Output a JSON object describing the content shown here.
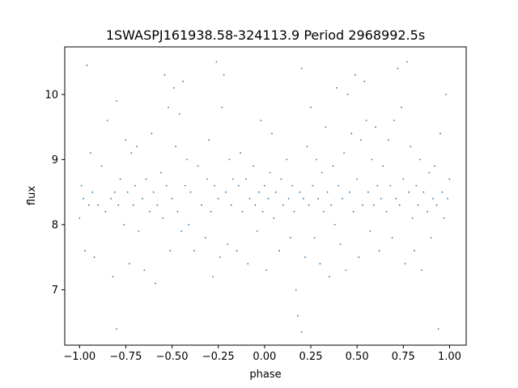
{
  "chart_data": {
    "type": "scatter",
    "title": "1SWASPJ161938.58-324113.9 Period 2968992.5s",
    "xlabel": "phase",
    "ylabel": "flux",
    "xlim": [
      -1.08,
      1.09
    ],
    "ylim": [
      6.15,
      10.73
    ],
    "xticks": [
      {
        "value": -1.0,
        "label": "−1.00"
      },
      {
        "value": -0.75,
        "label": "−0.75"
      },
      {
        "value": -0.5,
        "label": "−0.50"
      },
      {
        "value": -0.25,
        "label": "−0.25"
      },
      {
        "value": 0.0,
        "label": "0.00"
      },
      {
        "value": 0.25,
        "label": "0.25"
      },
      {
        "value": 0.5,
        "label": "0.50"
      },
      {
        "value": 0.75,
        "label": "0.75"
      },
      {
        "value": 1.0,
        "label": "1.00"
      }
    ],
    "yticks": [
      {
        "value": 7,
        "label": "7"
      },
      {
        "value": 8,
        "label": "8"
      },
      {
        "value": 9,
        "label": "9"
      },
      {
        "value": 10,
        "label": "10"
      }
    ],
    "grid": false,
    "legend": "none",
    "marker_color": "#1f77b4",
    "series": [
      {
        "points": [
          [
            -1.0,
            8.1
          ],
          [
            -0.99,
            8.6
          ],
          [
            -0.98,
            8.4
          ],
          [
            -0.97,
            7.6
          ],
          [
            -0.96,
            10.45
          ],
          [
            -0.95,
            8.3
          ],
          [
            -0.94,
            9.1
          ],
          [
            -0.93,
            8.5
          ],
          [
            -0.92,
            7.5
          ],
          [
            -0.9,
            8.3
          ],
          [
            -0.88,
            8.9
          ],
          [
            -0.86,
            8.2
          ],
          [
            -0.85,
            9.6
          ],
          [
            -0.83,
            8.4
          ],
          [
            -0.82,
            7.2
          ],
          [
            -0.81,
            8.5
          ],
          [
            -0.8,
            6.4
          ],
          [
            -0.8,
            9.9
          ],
          [
            -0.79,
            8.3
          ],
          [
            -0.78,
            8.7
          ],
          [
            -0.76,
            8.0
          ],
          [
            -0.75,
            9.3
          ],
          [
            -0.74,
            8.5
          ],
          [
            -0.73,
            7.4
          ],
          [
            -0.72,
            9.1
          ],
          [
            -0.71,
            8.3
          ],
          [
            -0.7,
            8.6
          ],
          [
            -0.69,
            9.2
          ],
          [
            -0.68,
            7.9
          ],
          [
            -0.66,
            8.4
          ],
          [
            -0.65,
            7.3
          ],
          [
            -0.64,
            8.7
          ],
          [
            -0.62,
            8.2
          ],
          [
            -0.61,
            9.4
          ],
          [
            -0.6,
            8.5
          ],
          [
            -0.59,
            7.1
          ],
          [
            -0.58,
            8.3
          ],
          [
            -0.56,
            8.8
          ],
          [
            -0.55,
            8.1
          ],
          [
            -0.54,
            10.3
          ],
          [
            -0.53,
            8.6
          ],
          [
            -0.52,
            9.8
          ],
          [
            -0.51,
            7.6
          ],
          [
            -0.5,
            8.4
          ],
          [
            -0.49,
            10.1
          ],
          [
            -0.48,
            9.2
          ],
          [
            -0.47,
            8.2
          ],
          [
            -0.46,
            9.7
          ],
          [
            -0.45,
            7.9
          ],
          [
            -0.44,
            10.2
          ],
          [
            -0.43,
            8.6
          ],
          [
            -0.42,
            9.0
          ],
          [
            -0.41,
            8.0
          ],
          [
            -0.4,
            8.5
          ],
          [
            -0.38,
            7.6
          ],
          [
            -0.36,
            8.9
          ],
          [
            -0.34,
            8.3
          ],
          [
            -0.32,
            7.8
          ],
          [
            -0.31,
            8.7
          ],
          [
            -0.3,
            9.3
          ],
          [
            -0.29,
            8.2
          ],
          [
            -0.28,
            7.2
          ],
          [
            -0.27,
            8.6
          ],
          [
            -0.26,
            10.5
          ],
          [
            -0.25,
            8.4
          ],
          [
            -0.24,
            7.5
          ],
          [
            -0.23,
            9.8
          ],
          [
            -0.22,
            10.3
          ],
          [
            -0.21,
            8.5
          ],
          [
            -0.2,
            7.7
          ],
          [
            -0.19,
            9.0
          ],
          [
            -0.18,
            8.3
          ],
          [
            -0.17,
            8.7
          ],
          [
            -0.15,
            7.6
          ],
          [
            -0.14,
            8.6
          ],
          [
            -0.13,
            9.1
          ],
          [
            -0.12,
            8.2
          ],
          [
            -0.1,
            8.7
          ],
          [
            -0.09,
            7.4
          ],
          [
            -0.08,
            8.4
          ],
          [
            -0.06,
            8.9
          ],
          [
            -0.05,
            8.3
          ],
          [
            -0.04,
            7.9
          ],
          [
            -0.03,
            8.5
          ],
          [
            -0.02,
            9.6
          ],
          [
            -0.01,
            8.2
          ],
          [
            0.0,
            8.6
          ],
          [
            0.01,
            7.3
          ],
          [
            0.02,
            8.4
          ],
          [
            0.03,
            8.8
          ],
          [
            0.04,
            9.4
          ],
          [
            0.05,
            8.1
          ],
          [
            0.06,
            8.5
          ],
          [
            0.08,
            7.6
          ],
          [
            0.09,
            8.7
          ],
          [
            0.1,
            8.3
          ],
          [
            0.12,
            9.0
          ],
          [
            0.13,
            8.4
          ],
          [
            0.14,
            7.8
          ],
          [
            0.15,
            8.6
          ],
          [
            0.16,
            8.2
          ],
          [
            0.17,
            7.0
          ],
          [
            0.18,
            6.6
          ],
          [
            0.19,
            8.5
          ],
          [
            0.2,
            6.35
          ],
          [
            0.2,
            10.4
          ],
          [
            0.21,
            8.4
          ],
          [
            0.22,
            7.5
          ],
          [
            0.23,
            9.2
          ],
          [
            0.24,
            8.3
          ],
          [
            0.25,
            9.8
          ],
          [
            0.26,
            8.6
          ],
          [
            0.27,
            7.8
          ],
          [
            0.28,
            9.0
          ],
          [
            0.29,
            8.4
          ],
          [
            0.3,
            7.4
          ],
          [
            0.31,
            8.8
          ],
          [
            0.32,
            8.2
          ],
          [
            0.33,
            9.5
          ],
          [
            0.34,
            8.5
          ],
          [
            0.35,
            7.2
          ],
          [
            0.36,
            8.3
          ],
          [
            0.37,
            8.9
          ],
          [
            0.38,
            8.0
          ],
          [
            0.39,
            10.1
          ],
          [
            0.4,
            8.6
          ],
          [
            0.41,
            7.7
          ],
          [
            0.42,
            8.4
          ],
          [
            0.43,
            9.1
          ],
          [
            0.44,
            7.3
          ],
          [
            0.45,
            10.0
          ],
          [
            0.46,
            8.5
          ],
          [
            0.47,
            9.4
          ],
          [
            0.48,
            8.2
          ],
          [
            0.49,
            10.3
          ],
          [
            0.5,
            8.7
          ],
          [
            0.51,
            7.5
          ],
          [
            0.52,
            9.3
          ],
          [
            0.53,
            8.3
          ],
          [
            0.54,
            10.2
          ],
          [
            0.55,
            9.6
          ],
          [
            0.56,
            8.5
          ],
          [
            0.57,
            7.9
          ],
          [
            0.58,
            9.0
          ],
          [
            0.59,
            8.3
          ],
          [
            0.6,
            9.5
          ],
          [
            0.61,
            8.6
          ],
          [
            0.62,
            7.6
          ],
          [
            0.63,
            8.4
          ],
          [
            0.64,
            8.9
          ],
          [
            0.66,
            8.2
          ],
          [
            0.67,
            9.3
          ],
          [
            0.68,
            8.6
          ],
          [
            0.69,
            7.8
          ],
          [
            0.7,
            9.6
          ],
          [
            0.71,
            8.4
          ],
          [
            0.72,
            10.4
          ],
          [
            0.73,
            8.3
          ],
          [
            0.74,
            9.8
          ],
          [
            0.75,
            8.7
          ],
          [
            0.76,
            7.4
          ],
          [
            0.77,
            10.5
          ],
          [
            0.78,
            8.5
          ],
          [
            0.79,
            9.2
          ],
          [
            0.8,
            8.1
          ],
          [
            0.81,
            7.6
          ],
          [
            0.82,
            8.6
          ],
          [
            0.83,
            8.3
          ],
          [
            0.84,
            9.0
          ],
          [
            0.85,
            7.3
          ],
          [
            0.86,
            8.5
          ],
          [
            0.88,
            8.2
          ],
          [
            0.89,
            8.8
          ],
          [
            0.9,
            7.8
          ],
          [
            0.91,
            8.4
          ],
          [
            0.92,
            8.9
          ],
          [
            0.93,
            8.3
          ],
          [
            0.94,
            6.4
          ],
          [
            0.95,
            9.4
          ],
          [
            0.96,
            8.5
          ],
          [
            0.97,
            8.1
          ],
          [
            0.98,
            10.0
          ],
          [
            0.99,
            8.4
          ],
          [
            1.0,
            8.7
          ]
        ]
      }
    ]
  }
}
